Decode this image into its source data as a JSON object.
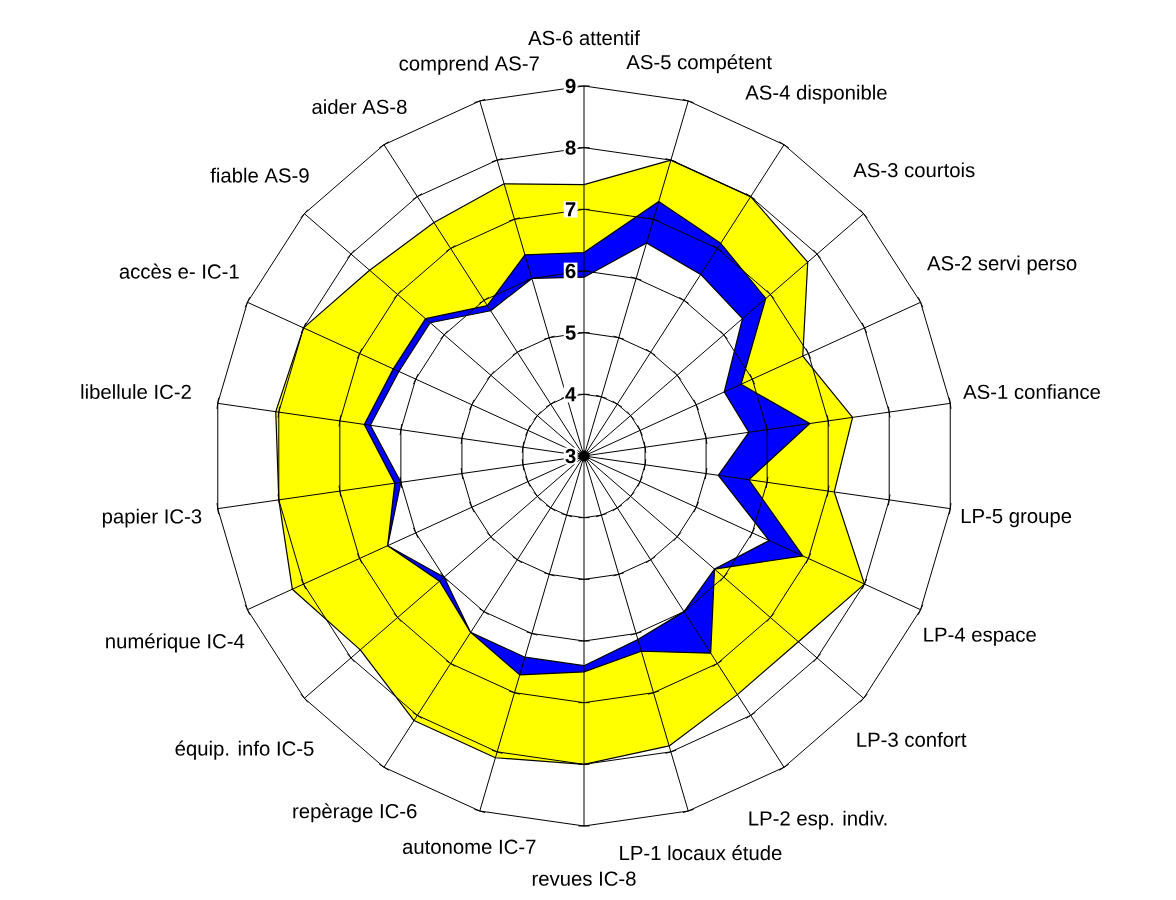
{
  "chart_data": {
    "type": "radar",
    "categories": [
      "AS-6 attentif",
      "AS-5 compétent",
      "AS-4 disponible",
      "AS-3 courtois",
      "AS-2 servi perso",
      "AS-1 confiance",
      "LP-5 groupe",
      "LP-4 espace",
      "LP-3 confort",
      "LP-2 esp. indiv.",
      "LP-1 locaux étude",
      "revues IC-8",
      "autonome IC-7",
      "repèrage IC-6",
      "équip. info IC-5",
      "numérique IC-4",
      "papier IC-3",
      "libellule IC-2",
      "accès e- IC-1",
      "fiable AS-9",
      "aider AS-8",
      "comprend AS-7"
    ],
    "series": [
      {
        "color": "#ffff00",
        "values": [
          7.4,
          8.0,
          8.0,
          7.8,
          6.9,
          7.4,
          7.1,
          8.0,
          7.6,
          7.6,
          7.9,
          8.0,
          8.1,
          8.1,
          7.8,
          8.2,
          8.0,
          8.05,
          8.0,
          7.6,
          7.5,
          7.6
        ]
      },
      {
        "color": "#0000ff",
        "values": [
          6.3,
          7.3,
          7.1,
          6.9,
          5.8,
          6.7,
          5.7,
          6.9,
          5.8,
          6.8,
          6.3,
          6.5,
          6.7,
          6.4,
          6.1,
          6.5,
          6.1,
          6.6,
          6.4,
          6.4,
          5.9,
          6.4
        ]
      },
      {
        "color": "#ffffff",
        "values": [
          5.9,
          6.6,
          6.5,
          6.4,
          5.5,
          5.7,
          5.2,
          6.3,
          5.8,
          6.0,
          6.1,
          6.4,
          6.4,
          6.4,
          6.0,
          6.5,
          6.0,
          6.5,
          6.3,
          6.3,
          5.8,
          6.0
        ]
      }
    ],
    "ylim": [
      3,
      9
    ],
    "yticks": [
      3,
      4,
      5,
      6,
      7,
      8,
      9
    ],
    "grid": true,
    "marker": "none"
  }
}
